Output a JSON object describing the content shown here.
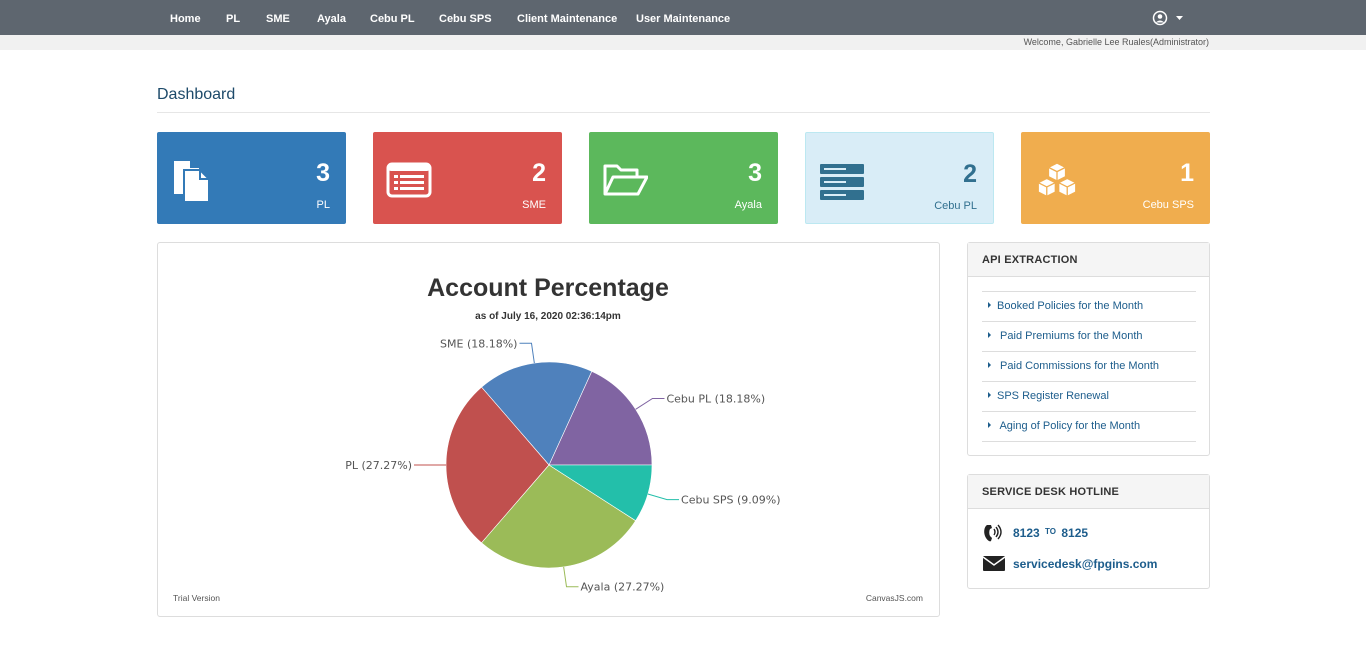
{
  "nav": {
    "items": [
      "Home",
      "PL",
      "SME",
      "Ayala",
      "Cebu PL",
      "Cebu SPS",
      "Client Maintenance",
      "User Maintenance"
    ],
    "user_icon": "user-circle-icon"
  },
  "welcome": "Welcome, Gabrielle Lee Ruales(Administrator)",
  "page_title": "Dashboard",
  "cards": [
    {
      "count": "3",
      "label": "PL",
      "icon": "documents-icon",
      "color": "#337ab7"
    },
    {
      "count": "2",
      "label": "SME",
      "icon": "list-window-icon",
      "color": "#d9534f"
    },
    {
      "count": "3",
      "label": "Ayala",
      "icon": "folder-open-icon",
      "color": "#5cb85c"
    },
    {
      "count": "2",
      "label": "Cebu PL",
      "icon": "server-icon",
      "color": "#d9edf7"
    },
    {
      "count": "1",
      "label": "Cebu SPS",
      "icon": "cubes-icon",
      "color": "#f0ad4e"
    }
  ],
  "chart": {
    "trial_text": "Trial Version",
    "credit_text": "CanvasJS.com"
  },
  "chart_data": {
    "type": "pie",
    "title": "Account Percentage",
    "subtitle": "as of July 16, 2020 02:36:14pm",
    "series": [
      {
        "label": "Cebu PL (18.18%)",
        "value": 18.18,
        "color": "#8064a2"
      },
      {
        "label": "SME (18.18%)",
        "value": 18.18,
        "color": "#4f81bc"
      },
      {
        "label": "PL (27.27%)",
        "value": 27.27,
        "color": "#c0504e"
      },
      {
        "label": "Ayala (27.27%)",
        "value": 27.27,
        "color": "#9bbb58"
      },
      {
        "label": "Cebu SPS (9.09%)",
        "value": 9.09,
        "color": "#23bfaa"
      }
    ]
  },
  "api_panel": {
    "title": "API EXTRACTION",
    "links": [
      "Booked Policies for the Month",
      " Paid Premiums for the Month",
      " Paid Commissions for the Month",
      "SPS Register Renewal",
      " Aging of Policy for the Month"
    ]
  },
  "hotline_panel": {
    "title": "SERVICE DESK HOTLINE",
    "phone_from": "8123",
    "phone_to_word": "TO",
    "phone_to": "8125",
    "email": "servicedesk@fpgins.com"
  }
}
